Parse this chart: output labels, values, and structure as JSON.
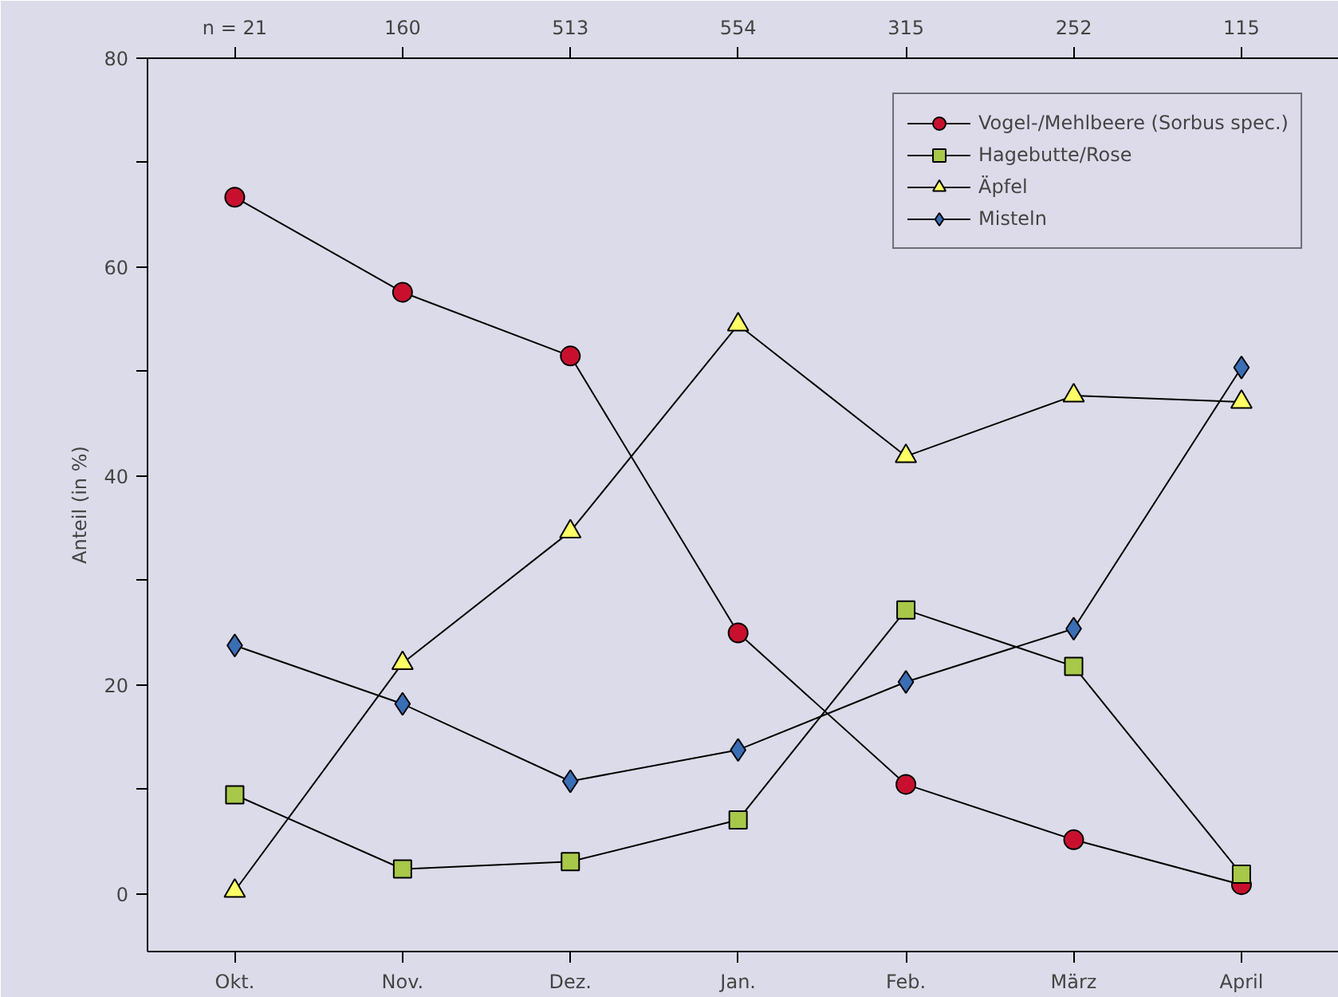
{
  "chart_data": {
    "type": "line",
    "ylabel": "Anteil (in %)",
    "categories": [
      "Okt.",
      "Nov.",
      "Dez.",
      "Jan.",
      "Feb.",
      "März",
      "April"
    ],
    "annotations": [
      "n = 21",
      "160",
      "513",
      "554",
      "315",
      "252",
      "115"
    ],
    "ylim": [
      -5.5,
      80
    ],
    "yticks": [
      0,
      {
        "value": 10,
        "label": null
      },
      20,
      {
        "value": 30,
        "label": null
      },
      40,
      {
        "value": 50,
        "label": null
      },
      60,
      {
        "value": 70,
        "label": null
      },
      80
    ],
    "grid": false,
    "legend": "top right",
    "series": [
      {
        "name": "Vogel-/Mehlbeere (Sorbus spec.)",
        "color": "#c8102e",
        "marker": "circle",
        "values": [
          66.7,
          57.6,
          51.5,
          25.0,
          10.5,
          5.2,
          0.9
        ]
      },
      {
        "name": "Hagebutte/Rose",
        "color": "#a8c84a",
        "marker": "square",
        "values": [
          9.5,
          2.4,
          3.1,
          7.1,
          27.2,
          21.8,
          1.9
        ]
      },
      {
        "name": "Äpfel",
        "color": "#ffff66",
        "marker": "triangle",
        "values": [
          0.3,
          22.1,
          34.7,
          54.5,
          41.9,
          47.7,
          47.1
        ]
      },
      {
        "name": "Misteln",
        "color": "#3a6eb5",
        "marker": "diamond",
        "values": [
          23.8,
          18.2,
          10.8,
          13.8,
          20.3,
          25.4,
          50.4
        ]
      }
    ]
  }
}
